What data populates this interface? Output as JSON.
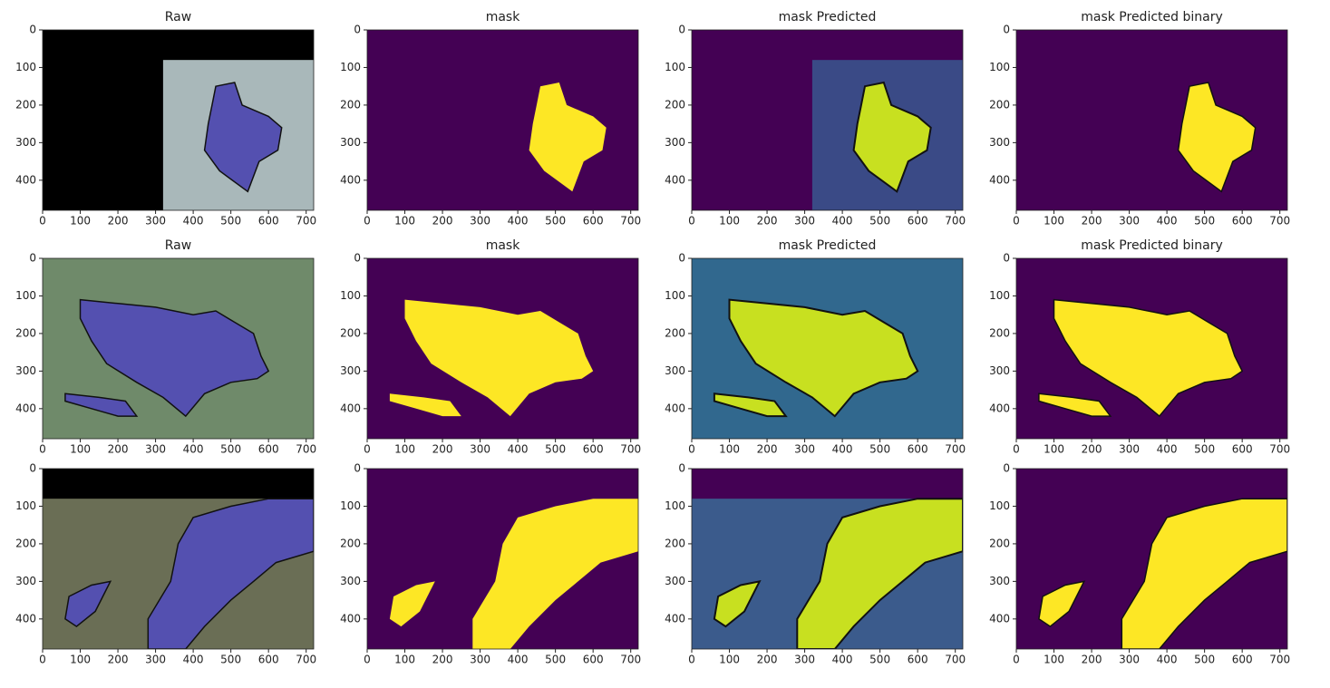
{
  "chart_data": [
    {
      "type": "image",
      "title": "Raw",
      "xlim": [
        0,
        720
      ],
      "ylim": [
        480,
        0
      ],
      "xticks": [
        0,
        100,
        200,
        300,
        400,
        500,
        600,
        700
      ],
      "yticks": [
        0,
        100,
        200,
        300,
        400
      ]
    },
    {
      "type": "image",
      "title": "mask",
      "xlim": [
        0,
        720
      ],
      "ylim": [
        480,
        0
      ],
      "xticks": [
        0,
        100,
        200,
        300,
        400,
        500,
        600,
        700
      ],
      "yticks": [
        0,
        100,
        200,
        300,
        400
      ]
    },
    {
      "type": "image",
      "title": "mask Predicted",
      "xlim": [
        0,
        720
      ],
      "ylim": [
        480,
        0
      ],
      "xticks": [
        0,
        100,
        200,
        300,
        400,
        500,
        600,
        700
      ],
      "yticks": [
        0,
        100,
        200,
        300,
        400
      ]
    },
    {
      "type": "image",
      "title": "mask Predicted binary",
      "xlim": [
        0,
        720
      ],
      "ylim": [
        480,
        0
      ],
      "xticks": [
        0,
        100,
        200,
        300,
        400,
        500,
        600,
        700
      ],
      "yticks": [
        0,
        100,
        200,
        300,
        400
      ]
    },
    {
      "type": "image",
      "title": "Raw",
      "xlim": [
        0,
        720
      ],
      "ylim": [
        480,
        0
      ],
      "xticks": [
        0,
        100,
        200,
        300,
        400,
        500,
        600,
        700
      ],
      "yticks": [
        0,
        100,
        200,
        300,
        400
      ]
    },
    {
      "type": "image",
      "title": "mask",
      "xlim": [
        0,
        720
      ],
      "ylim": [
        480,
        0
      ],
      "xticks": [
        0,
        100,
        200,
        300,
        400,
        500,
        600,
        700
      ],
      "yticks": [
        0,
        100,
        200,
        300,
        400
      ]
    },
    {
      "type": "image",
      "title": "mask Predicted",
      "xlim": [
        0,
        720
      ],
      "ylim": [
        480,
        0
      ],
      "xticks": [
        0,
        100,
        200,
        300,
        400,
        500,
        600,
        700
      ],
      "yticks": [
        0,
        100,
        200,
        300,
        400
      ]
    },
    {
      "type": "image",
      "title": "mask Predicted binary",
      "xlim": [
        0,
        720
      ],
      "ylim": [
        480,
        0
      ],
      "xticks": [
        0,
        100,
        200,
        300,
        400,
        500,
        600,
        700
      ],
      "yticks": [
        0,
        100,
        200,
        300,
        400
      ]
    },
    {
      "type": "image",
      "xlim": [
        0,
        720
      ],
      "ylim": [
        480,
        0
      ],
      "xticks": [
        0,
        100,
        200,
        300,
        400,
        500,
        600,
        700
      ],
      "yticks": [
        0,
        100,
        200,
        300,
        400
      ]
    },
    {
      "type": "image",
      "xlim": [
        0,
        720
      ],
      "ylim": [
        480,
        0
      ],
      "xticks": [
        0,
        100,
        200,
        300,
        400,
        500,
        600,
        700
      ],
      "yticks": [
        0,
        100,
        200,
        300,
        400
      ]
    },
    {
      "type": "image",
      "xlim": [
        0,
        720
      ],
      "ylim": [
        480,
        0
      ],
      "xticks": [
        0,
        100,
        200,
        300,
        400,
        500,
        600,
        700
      ],
      "yticks": [
        0,
        100,
        200,
        300,
        400
      ]
    },
    {
      "type": "image",
      "xlim": [
        0,
        720
      ],
      "ylim": [
        480,
        0
      ],
      "xticks": [
        0,
        100,
        200,
        300,
        400,
        500,
        600,
        700
      ],
      "yticks": [
        0,
        100,
        200,
        300,
        400
      ]
    }
  ]
}
